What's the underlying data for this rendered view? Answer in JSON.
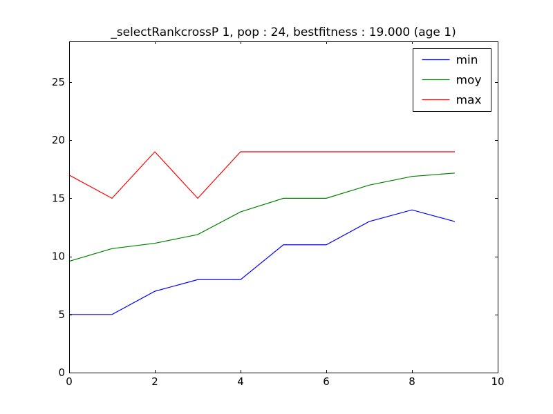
{
  "chart_data": {
    "type": "line",
    "title": "_selectRankcrossP 1, pop : 24, bestfitness : 19.000 (age 1)",
    "xlabel": "",
    "ylabel": "",
    "xlim": [
      0,
      10
    ],
    "ylim": [
      0,
      28.5
    ],
    "xticks": [
      0,
      2,
      4,
      6,
      8,
      10
    ],
    "yticks": [
      0,
      5,
      10,
      15,
      20,
      25
    ],
    "grid": false,
    "legend_position": "top-right",
    "x": [
      0,
      1,
      2,
      3,
      4,
      5,
      6,
      7,
      8,
      9
    ],
    "series": [
      {
        "name": "min",
        "color": "#0000ff",
        "values": [
          5,
          5,
          7,
          8,
          8,
          11,
          11,
          13,
          14,
          13
        ]
      },
      {
        "name": "moy",
        "color": "#008000",
        "values": [
          9.58,
          10.67,
          11.13,
          11.88,
          13.83,
          15.0,
          15.0,
          16.13,
          16.88,
          17.17
        ]
      },
      {
        "name": "max",
        "color": "#ff0000",
        "values": [
          17,
          15,
          19,
          15,
          19,
          19,
          19,
          19,
          19,
          19
        ]
      }
    ]
  }
}
